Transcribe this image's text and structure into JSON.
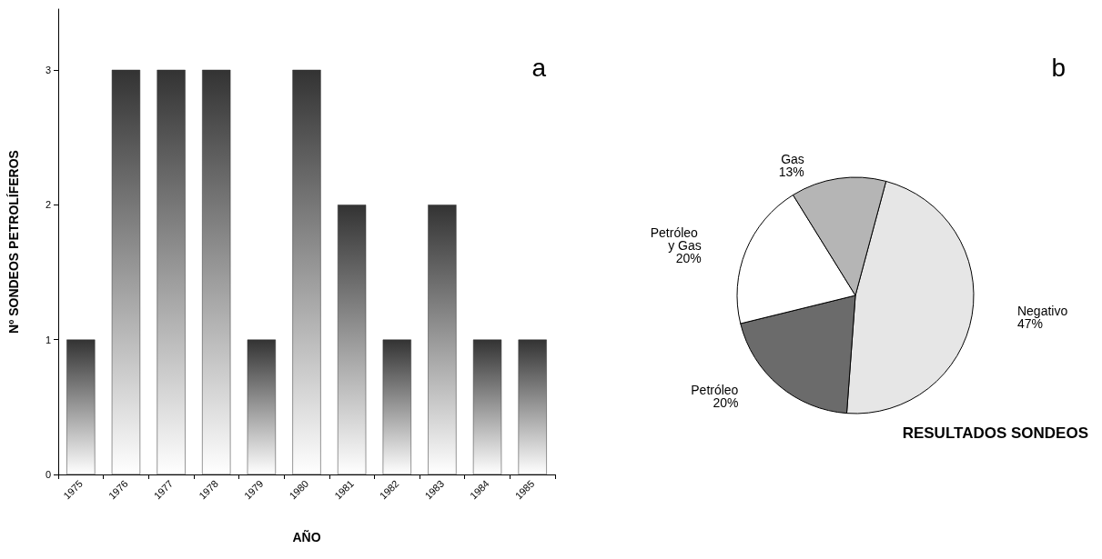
{
  "chart_data": [
    {
      "type": "bar",
      "xlabel": "AÑO",
      "ylabel": "Nº SONDEOS PETROLÍFEROS",
      "categories": [
        "1975",
        "1976",
        "1977",
        "1978",
        "1979",
        "1980",
        "1981",
        "1982",
        "1983",
        "1984",
        "1985"
      ],
      "values": [
        1,
        3,
        3,
        3,
        1,
        3,
        2,
        1,
        2,
        1,
        1
      ],
      "color": "#333333",
      "ylim": [
        0,
        3.45
      ],
      "yticks": [
        0,
        1,
        2,
        3
      ],
      "grid": false,
      "annotations": [
        "a"
      ]
    },
    {
      "type": "pie",
      "title": "RESULTADOS SONDEOS",
      "categories": [
        "Negativo",
        "Petróleo",
        "Petróleo y Gas",
        "Gas"
      ],
      "values": [
        47,
        20,
        20,
        13
      ],
      "value_labels": [
        "47%",
        "20%",
        "20%",
        "13%"
      ],
      "colors": [
        "#e6e6e6",
        "#6b6b6b",
        "#ffffff",
        "#b5b5b5"
      ],
      "annotations": [
        "b"
      ]
    }
  ]
}
